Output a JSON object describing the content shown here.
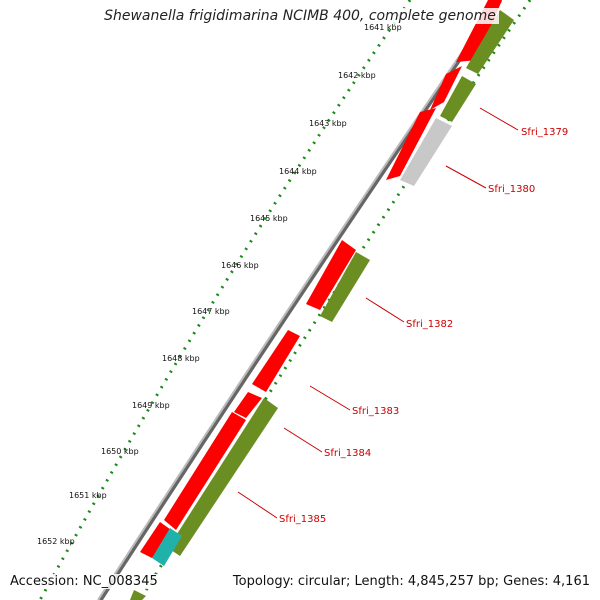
{
  "title": "Shewanella frigidimarina NCIMB 400, complete genome",
  "footer": {
    "accession": "Accession: NC_008345",
    "stats": "Topology: circular; Length: 4,845,257 bp; Genes: 4,161"
  },
  "colors": {
    "forward_gene": "#ff0000",
    "reverse_gene": "#6b8e23",
    "pseudo_gene": "#c8c8c8",
    "rna_gene": "#20b2aa",
    "backbone": "#888888",
    "scale": "#1a8a1a",
    "gene_label": "#cc0000"
  },
  "scale_labels": [
    "1641 kbp",
    "1642 kbp",
    "1643 kbp",
    "1644 kbp",
    "1645 kbp",
    "1646 kbp",
    "1647 kbp",
    "1648 kbp",
    "1649 kbp",
    "1650 kbp",
    "1651 kbp",
    "1652 kbp"
  ],
  "gene_labels": [
    "Sfri_1379",
    "Sfri_1380",
    "Sfri_1382",
    "Sfri_1383",
    "Sfri_1384",
    "Sfri_1385"
  ]
}
